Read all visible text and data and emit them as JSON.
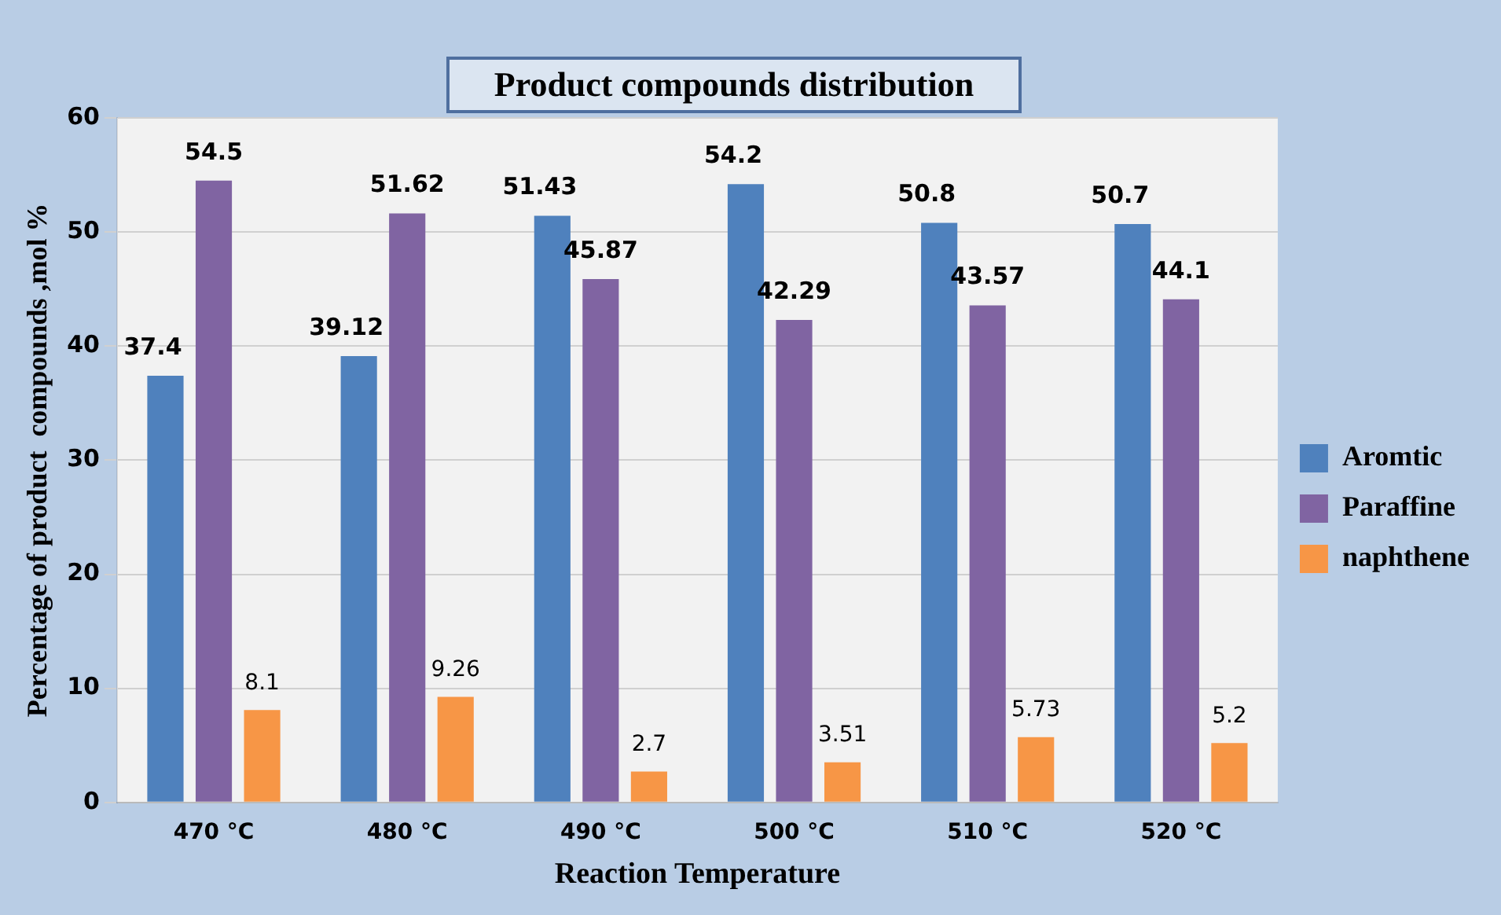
{
  "chart_data": {
    "type": "bar",
    "title": "Product compounds distribution",
    "xlabel": "Reaction Temperature",
    "ylabel": "Percentage of product  compounds ,mol %",
    "categories": [
      "470 °C",
      "480 °C",
      "490 °C",
      "500 °C",
      "510 °C",
      "520 °C"
    ],
    "series": [
      {
        "name": "Aromtic",
        "color": "#4f81bd",
        "values": [
          37.4,
          39.12,
          51.43,
          54.2,
          50.8,
          50.7
        ]
      },
      {
        "name": "Paraffine",
        "color": "#8064a2",
        "values": [
          54.5,
          51.62,
          45.87,
          42.29,
          43.57,
          44.1
        ]
      },
      {
        "name": "naphthene",
        "color": "#f79646",
        "values": [
          8.1,
          9.26,
          2.7,
          3.51,
          5.73,
          5.2
        ]
      }
    ],
    "ylim": [
      0,
      60
    ],
    "yticks": [
      0,
      10,
      20,
      30,
      40,
      50,
      60
    ],
    "grid": "y",
    "legend": "right",
    "data_labels": true
  }
}
